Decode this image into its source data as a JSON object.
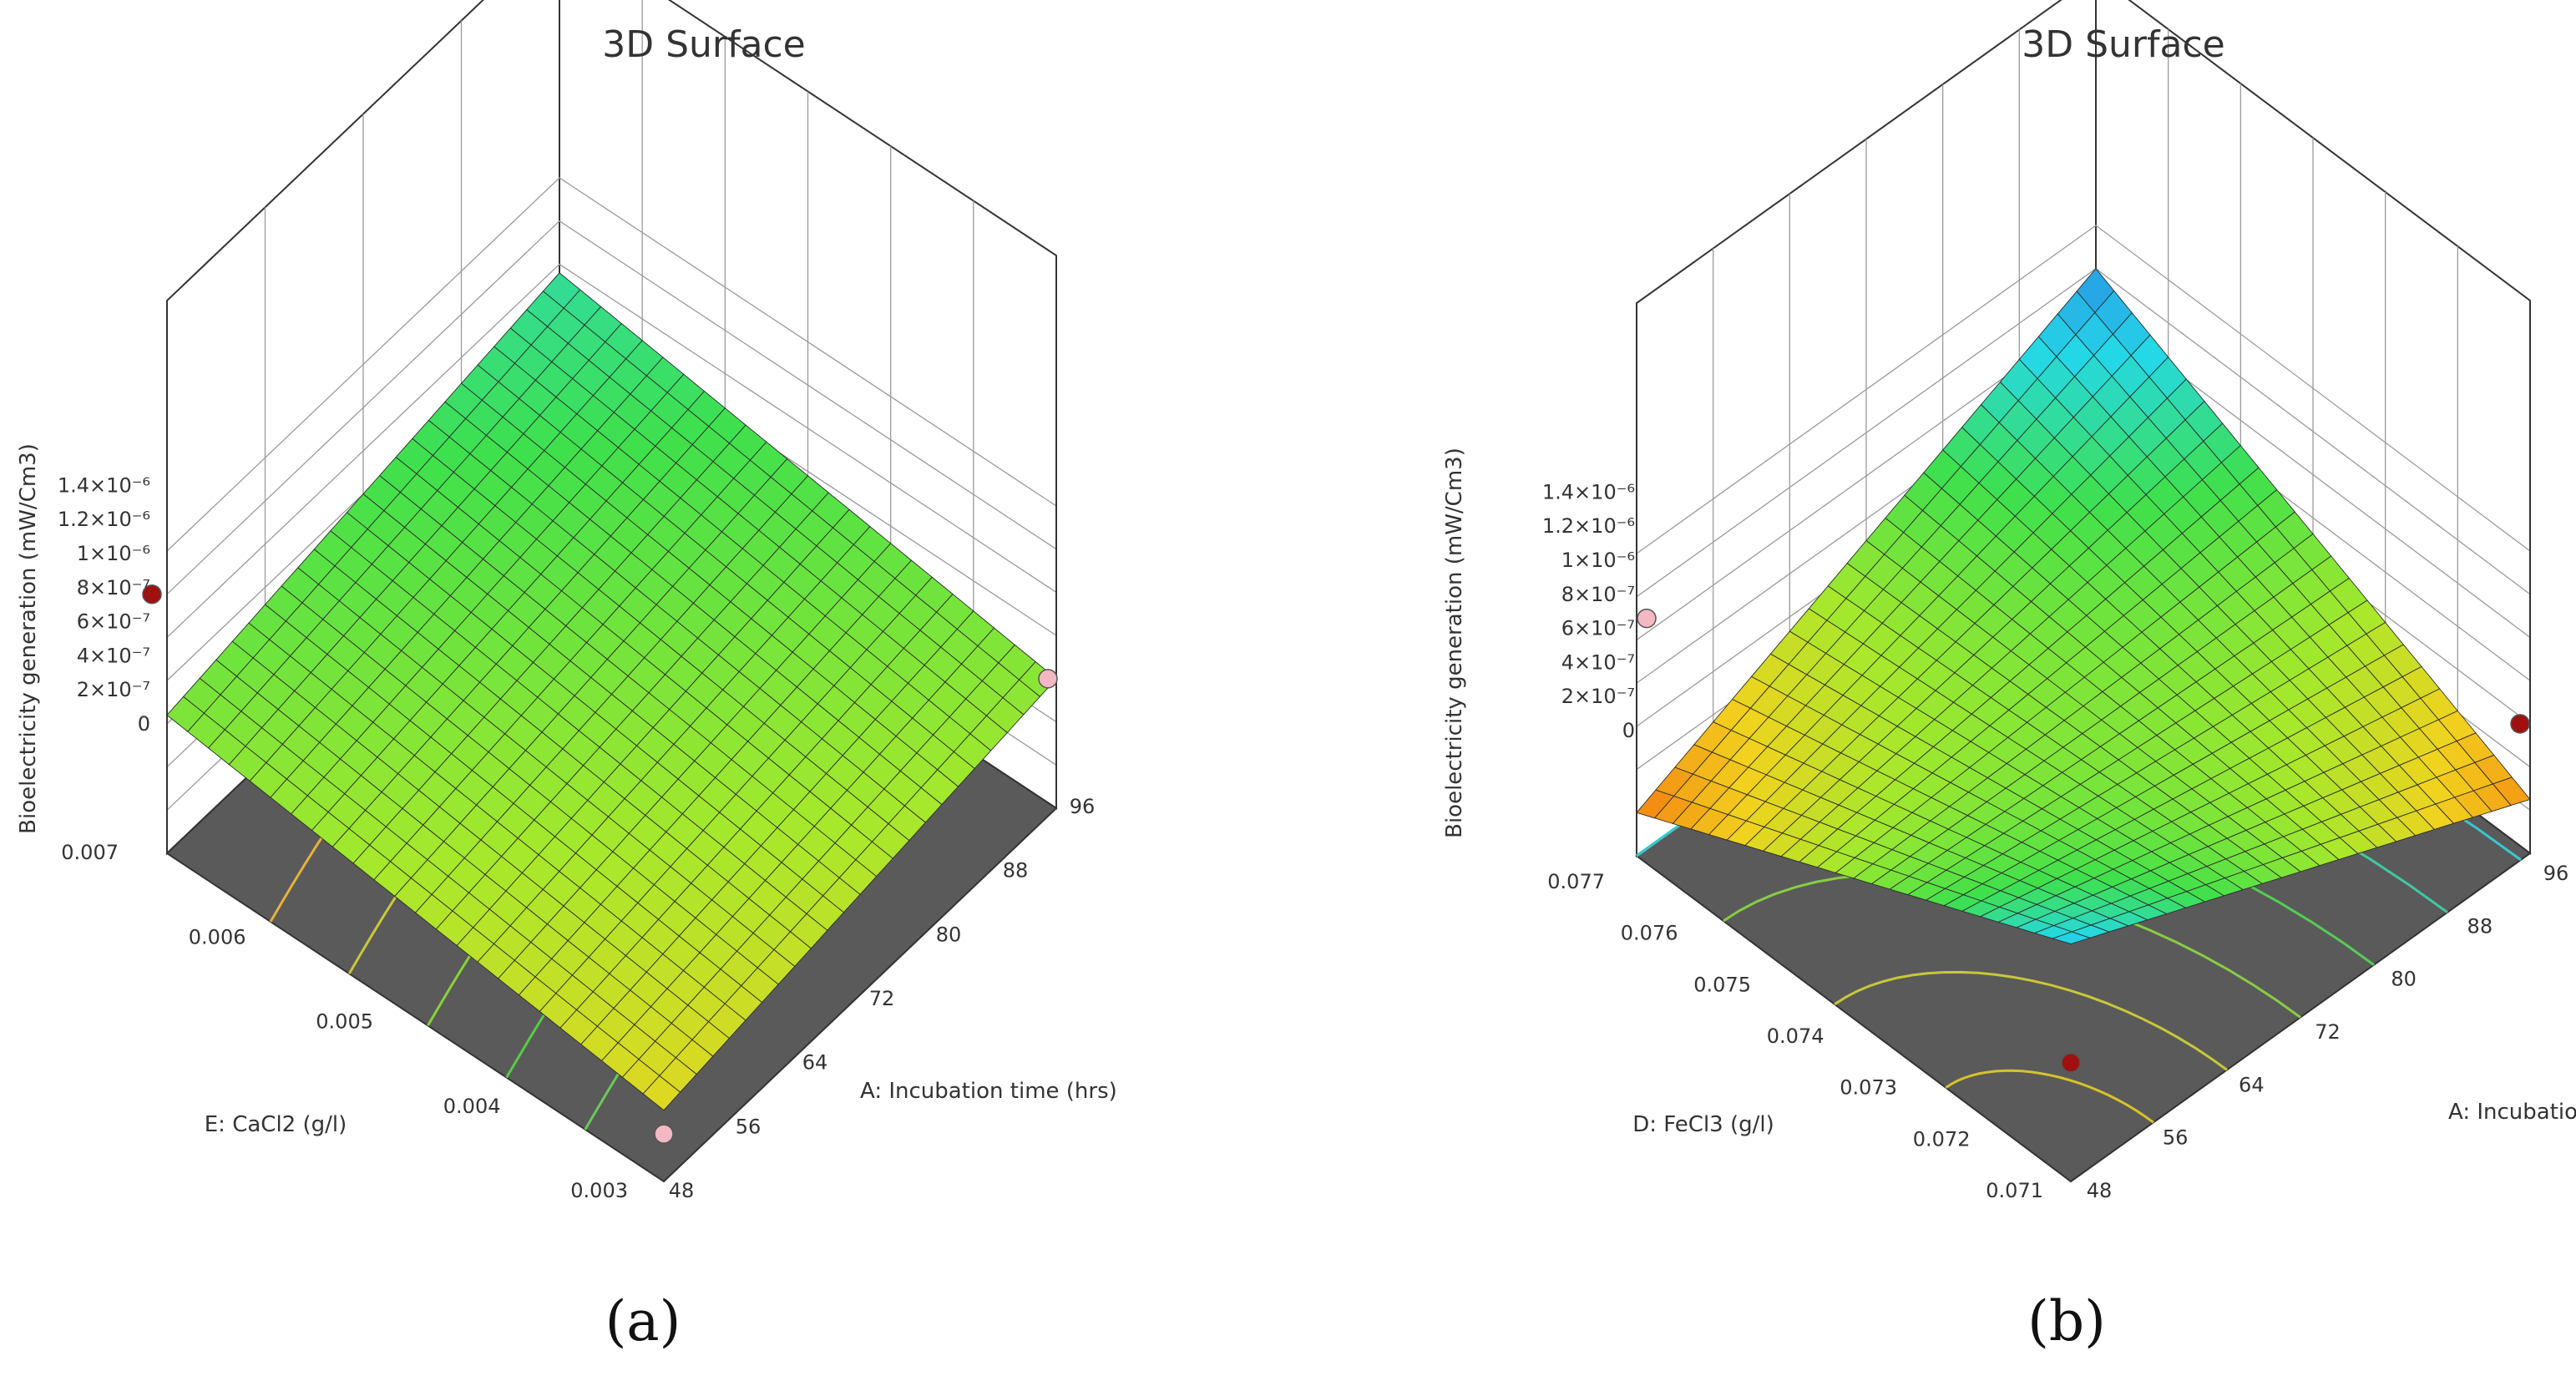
{
  "figure": {
    "panels": [
      {
        "label": "(a)"
      },
      {
        "label": "(b)"
      }
    ]
  },
  "chart_data": [
    {
      "type": "surface3d",
      "title": "3D Surface",
      "panel_label": "(a)",
      "zlabel": "Bioelectricity generation (mW/Cm3)",
      "xlabel": "A: Incubation time (hrs)",
      "ylabel": "E: CaCl2 (g/l)",
      "x_ticks": [
        "48",
        "56",
        "64",
        "72",
        "80",
        "88",
        "96"
      ],
      "y_ticks": [
        "0.003",
        "0.004",
        "0.005",
        "0.006",
        "0.007"
      ],
      "z_ticks": [
        "0",
        "2×10⁻⁷",
        "4×10⁻⁷",
        "6×10⁻⁷",
        "8×10⁻⁷",
        "1×10⁻⁶",
        "1.2×10⁻⁶",
        "1.4×10⁻⁶"
      ],
      "xlim": [
        48,
        96
      ],
      "ylim": [
        0.003,
        0.007
      ],
      "zlim": [
        0,
        1.4e-06
      ],
      "surface_corners": {
        "x48_ylow": 3.3e-07,
        "x96_ylow": 6e-07,
        "x48_yhigh": 6.4e-07,
        "x96_yhigh": 9.6e-07
      },
      "design_points": [
        {
          "x": 48,
          "y": 0.003,
          "z": 1.2e-06,
          "color": "#a01010"
        },
        {
          "x": 48,
          "y": 0.003,
          "z": 1e-07,
          "color": "#f3b8c4"
        },
        {
          "x": 96,
          "y": 0.003,
          "z": 6e-07,
          "color": "#f3b8c4"
        }
      ],
      "contours": {
        "count": 5,
        "colors": [
          "#66cc55",
          "#55cc44",
          "#88d23a",
          "#c8c83a",
          "#e6b23a"
        ]
      }
    },
    {
      "type": "surface3d",
      "title": "3D Surface",
      "panel_label": "(b)",
      "zlabel": "Bioelectricity generation (mW/Cm3)",
      "xlabel": "A: Incubation time (hrs)",
      "ylabel": "D: FeCl3 (g/l)",
      "x_ticks": [
        "48",
        "56",
        "64",
        "72",
        "80",
        "88",
        "96"
      ],
      "y_ticks": [
        "0.071",
        "0.072",
        "0.073",
        "0.074",
        "0.075",
        "0.076",
        "0.077"
      ],
      "z_ticks": [
        "0",
        "2×10⁻⁷",
        "4×10⁻⁷",
        "6×10⁻⁷",
        "8×10⁻⁷",
        "1×10⁻⁶",
        "1.2×10⁻⁶",
        "1.4×10⁻⁶"
      ],
      "xlim": [
        48,
        96
      ],
      "ylim": [
        0.071,
        0.077
      ],
      "zlim": [
        0,
        1.4e-06
      ],
      "surface_corners": {
        "x48_ylow": 1.1e-06,
        "x96_ylow": 2.5e-07,
        "x48_yhigh": 2e-07,
        "x96_yhigh": 1.2e-06
      },
      "design_points": [
        {
          "x": 48,
          "y": 0.071,
          "z": 1.1e-06,
          "color": "#f3b8c4"
        },
        {
          "x": 96,
          "y": 0.071,
          "z": 6e-07,
          "color": "#a01010"
        },
        {
          "x": 48,
          "y": 0.071,
          "z": 2e-07,
          "color": "#a01010"
        }
      ],
      "contours": {
        "count": 6,
        "colors": [
          "#d8c22a",
          "#c8c83a",
          "#88cc44",
          "#55cc55",
          "#40c8a0",
          "#38c8d0"
        ]
      }
    }
  ]
}
